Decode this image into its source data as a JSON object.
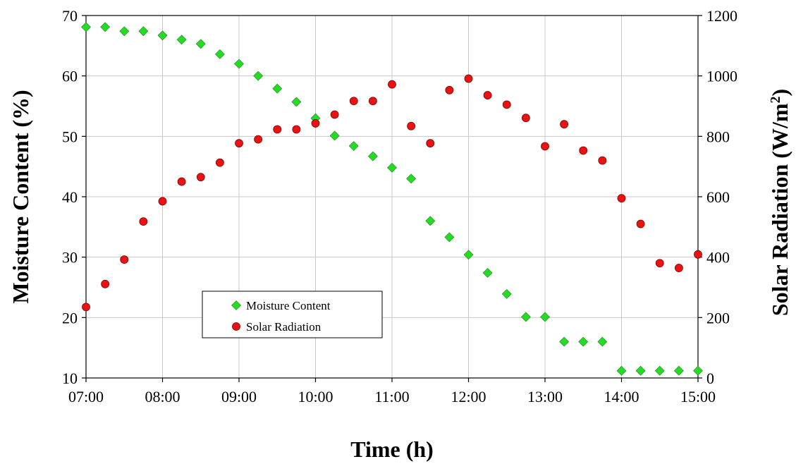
{
  "chart_data": {
    "type": "scatter",
    "xlabel": "Time (h)",
    "ylabel": "Moisture Content (%)",
    "y2label_main": "Solar Radiation (W/m",
    "y2label_sup": "2",
    "y2label_close": ")",
    "x_tick_labels": [
      "07:00",
      "08:00",
      "09:00",
      "10:00",
      "11:00",
      "12:00",
      "13:00",
      "14:00",
      "15:00"
    ],
    "x_ticks_hours": [
      7,
      8,
      9,
      10,
      11,
      12,
      13,
      14,
      15
    ],
    "xlim_hours": [
      7,
      15
    ],
    "ylim": [
      10,
      70
    ],
    "y_ticks": [
      10,
      20,
      30,
      40,
      50,
      60,
      70
    ],
    "y2lim": [
      0,
      1200
    ],
    "y2_ticks": [
      0,
      200,
      400,
      600,
      800,
      1000,
      1200
    ],
    "grid": true,
    "legend_position": "center-left",
    "series": [
      {
        "name": "Moisture Content",
        "axis": "left",
        "marker": "diamond",
        "color": "#22dd22",
        "x_hours": [
          7,
          7.25,
          7.5,
          7.75,
          8,
          8.25,
          8.5,
          8.75,
          9,
          9.25,
          9.5,
          9.75,
          10,
          10.25,
          10.5,
          10.75,
          11,
          11.25,
          11.5,
          11.75,
          12,
          12.25,
          12.5,
          12.75,
          13,
          13.25,
          13.5,
          13.75,
          14,
          14.25,
          14.5,
          14.75,
          15
        ],
        "values": [
          68.1,
          68.1,
          67.4,
          67.4,
          66.7,
          66.0,
          65.3,
          63.6,
          62.0,
          60.0,
          57.9,
          55.7,
          53.0,
          50.1,
          48.4,
          46.7,
          44.8,
          43.0,
          36.0,
          33.3,
          30.4,
          27.4,
          23.9,
          20.1,
          20.1,
          16.0,
          16.0,
          16.0,
          11.2,
          11.2,
          11.2,
          11.2,
          11.2
        ]
      },
      {
        "name": "Solar Radiation",
        "axis": "right",
        "marker": "circle",
        "color": "#ee1111",
        "x_hours": [
          7,
          7.25,
          7.5,
          7.75,
          8,
          8.25,
          8.5,
          8.75,
          9,
          9.25,
          9.5,
          9.75,
          10,
          10.25,
          10.5,
          10.75,
          11,
          11.25,
          11.5,
          11.75,
          12,
          12.25,
          12.5,
          12.75,
          13,
          13.25,
          13.5,
          13.75,
          14,
          14.25,
          14.5,
          14.75,
          15
        ],
        "values": [
          235,
          311,
          392,
          518,
          585,
          650,
          665,
          713,
          777,
          790,
          823,
          823,
          843,
          872,
          917,
          917,
          972,
          834,
          777,
          953,
          991,
          936,
          905,
          861,
          767,
          840,
          753,
          720,
          595,
          510,
          380,
          364,
          409
        ]
      }
    ]
  }
}
